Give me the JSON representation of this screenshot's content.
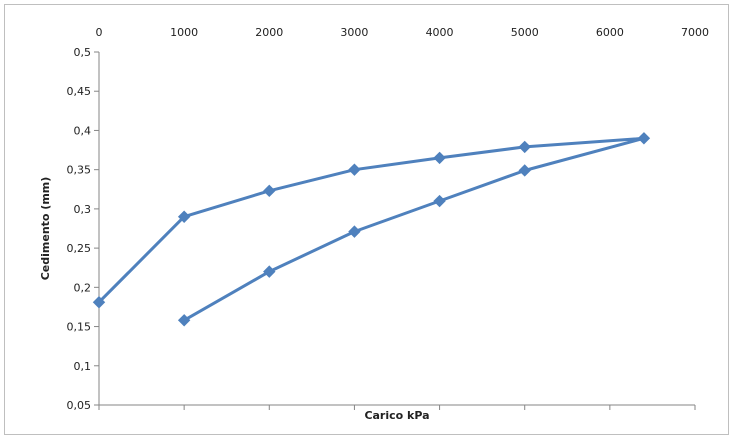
{
  "chart_data": {
    "type": "line",
    "title": "",
    "xlabel": "Carico kPa",
    "ylabel": "Cedimento (mm)",
    "x_axis_position": "top",
    "xlim": [
      0,
      7000
    ],
    "ylim": [
      0.05,
      0.5
    ],
    "x_ticks": [
      0,
      1000,
      2000,
      3000,
      4000,
      5000,
      6000,
      7000
    ],
    "x_tick_labels": [
      "0",
      "1000",
      "2000",
      "3000",
      "4000",
      "5000",
      "6000",
      "7000"
    ],
    "y_ticks": [
      0.05,
      0.1,
      0.15,
      0.2,
      0.25,
      0.3,
      0.35,
      0.4,
      0.45,
      0.5
    ],
    "y_tick_labels": [
      "0,05",
      "0,1",
      "0,15",
      "0,2",
      "0,25",
      "0,3",
      "0,35",
      "0,4",
      "0,45",
      "0,5"
    ],
    "grid": false,
    "legend": "none",
    "series_color": "#4f81bd",
    "series": [
      {
        "x": [
          0,
          1000,
          2000,
          3000,
          4000,
          5000,
          6400,
          5000,
          4000,
          3000,
          2000,
          1000
        ],
        "y": [
          0.181,
          0.29,
          0.323,
          0.35,
          0.365,
          0.379,
          0.39,
          0.349,
          0.31,
          0.271,
          0.22,
          0.158
        ]
      }
    ]
  }
}
